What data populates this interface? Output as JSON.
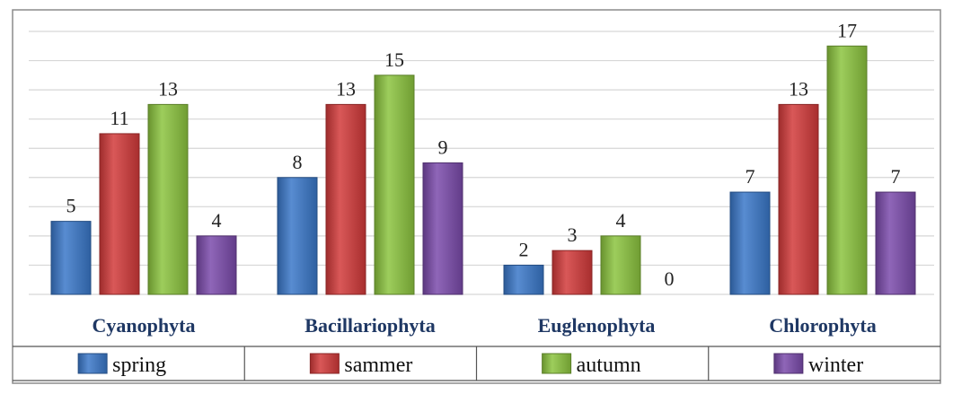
{
  "chart_data": {
    "type": "bar",
    "categories": [
      "Cyanophyta",
      "Bacillariophyta",
      "Euglenophyta",
      "Chlorophyta"
    ],
    "series": [
      {
        "name": "spring",
        "values": [
          5,
          8,
          2,
          7
        ],
        "color": "#3a78c9"
      },
      {
        "name": "sammer",
        "values": [
          11,
          13,
          3,
          13
        ],
        "color": "#d23a3a"
      },
      {
        "name": "autumn",
        "values": [
          13,
          15,
          4,
          17
        ],
        "color": "#8cc43f"
      },
      {
        "name": "winter",
        "values": [
          4,
          9,
          0,
          7
        ],
        "color": "#7b4bab"
      }
    ],
    "ylim": [
      0,
      18
    ],
    "grid": true,
    "legend_position": "bottom"
  }
}
